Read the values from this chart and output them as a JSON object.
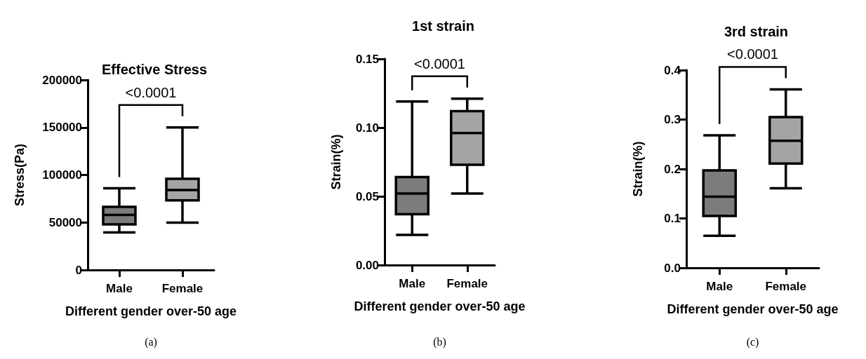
{
  "chart_data": [
    {
      "type": "box",
      "title": "Effective Stress",
      "xlabel": "Different gender over-50 age",
      "ylabel": "Stress(Pa)",
      "categories": [
        "Male",
        "Female"
      ],
      "colors": [
        "#7c7c7c",
        "#a4a4a4"
      ],
      "boxes": [
        {
          "low": 39400,
          "q1": 48000,
          "median": 57900,
          "q3": 66500,
          "high": 86000
        },
        {
          "low": 49800,
          "q1": 73200,
          "median": 84200,
          "q3": 96000,
          "high": 150000
        }
      ],
      "ylim": [
        0,
        200000
      ],
      "yticks": [
        0,
        50000,
        100000,
        150000,
        200000
      ],
      "grid": false,
      "annotations": [
        "<0.0001",
        "(a)"
      ]
    },
    {
      "type": "box",
      "title": "1st strain",
      "xlabel": "Different gender over-50 age",
      "ylabel": "Strain(%)",
      "categories": [
        "Male",
        "Female"
      ],
      "colors": [
        "#7c7c7c",
        "#a4a4a4"
      ],
      "boxes": [
        {
          "low": 0.022,
          "q1": 0.037,
          "median": 0.052,
          "q3": 0.064,
          "high": 0.119
        },
        {
          "low": 0.052,
          "q1": 0.073,
          "median": 0.096,
          "q3": 0.112,
          "high": 0.121
        }
      ],
      "ylim": [
        0,
        0.15
      ],
      "yticks": [
        {
          "value": 0,
          "label": "0.00"
        },
        {
          "value": 0.05,
          "label": "0.05"
        },
        {
          "value": 0.1,
          "label": "0.10"
        },
        {
          "value": 0.15,
          "label": "0.15"
        }
      ],
      "grid": false,
      "annotations": [
        "<0.0001",
        "(b)"
      ]
    },
    {
      "type": "box",
      "title": "3rd strain",
      "xlabel": "Different gender over-50 age",
      "ylabel": "Strain(%)",
      "categories": [
        "Male",
        "Female"
      ],
      "colors": [
        "#7c7c7c",
        "#a4a4a4"
      ],
      "boxes": [
        {
          "low": 0.065,
          "q1": 0.105,
          "median": 0.144,
          "q3": 0.197,
          "high": 0.268
        },
        {
          "low": 0.161,
          "q1": 0.211,
          "median": 0.257,
          "q3": 0.305,
          "high": 0.361
        }
      ],
      "ylim": [
        0,
        0.4
      ],
      "yticks": [
        {
          "value": 0,
          "label": "0.0"
        },
        0.1,
        0.2,
        0.3,
        0.4
      ],
      "grid": false,
      "annotations": [
        "<0.0001",
        "(c)"
      ]
    }
  ]
}
